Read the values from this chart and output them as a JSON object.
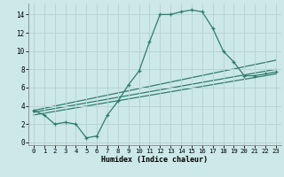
{
  "xlabel": "Humidex (Indice chaleur)",
  "bg_color": "#cce8e8",
  "grid_color": "#b8d4d4",
  "line_color": "#2e7d6e",
  "xlim": [
    -0.5,
    23.5
  ],
  "ylim": [
    -0.3,
    15.2
  ],
  "xticks": [
    0,
    1,
    2,
    3,
    4,
    5,
    6,
    7,
    8,
    9,
    10,
    11,
    12,
    13,
    14,
    15,
    16,
    17,
    18,
    19,
    20,
    21,
    22,
    23
  ],
  "yticks": [
    0,
    2,
    4,
    6,
    8,
    10,
    12,
    14
  ],
  "main_x": [
    0,
    1,
    2,
    3,
    4,
    5,
    6,
    7,
    8,
    9,
    10,
    11,
    12,
    13,
    14,
    15,
    16,
    17,
    18,
    19,
    20,
    21,
    22,
    23
  ],
  "main_y": [
    3.5,
    3.0,
    2.0,
    2.2,
    2.0,
    0.5,
    0.7,
    3.0,
    4.5,
    6.3,
    7.8,
    11.0,
    14.0,
    14.0,
    14.3,
    14.5,
    14.3,
    12.5,
    10.0,
    8.8,
    7.3,
    7.3,
    7.5,
    7.7
  ],
  "line2_x": [
    0,
    23
  ],
  "line2_y": [
    3.5,
    9.0
  ],
  "line3_x": [
    0,
    23
  ],
  "line3_y": [
    3.3,
    8.0
  ],
  "line4_x": [
    0,
    23
  ],
  "line4_y": [
    3.0,
    7.5
  ]
}
